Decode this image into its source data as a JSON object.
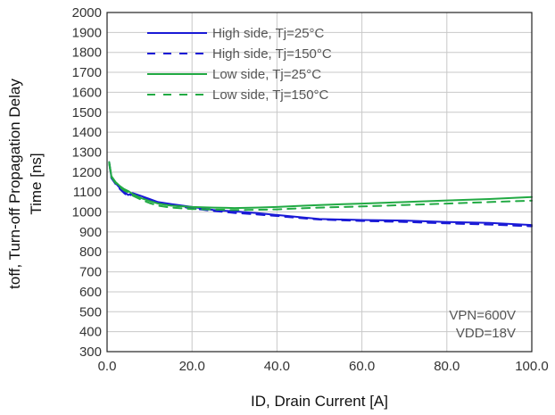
{
  "chart_data": {
    "type": "line",
    "xlabel": "ID, Drain Current [A]",
    "ylabel_lines": [
      "toff, Turn-off Propagation Delay",
      "Time [ns]"
    ],
    "xlim": [
      0,
      100
    ],
    "ylim": [
      300,
      2000
    ],
    "x_ticks": [
      0,
      20,
      40,
      60,
      80,
      100
    ],
    "x_tick_labels": [
      "0.0",
      "20.0",
      "40.0",
      "60.0",
      "80.0",
      "100.0"
    ],
    "y_ticks": [
      300,
      400,
      500,
      600,
      700,
      800,
      900,
      1000,
      1100,
      1200,
      1300,
      1400,
      1500,
      1600,
      1700,
      1800,
      1900,
      2000
    ],
    "grid": true,
    "legend_position": "top-left",
    "annotations": [
      "VPN=600V",
      "VDD=18V"
    ],
    "series": [
      {
        "name": "High side, Tj=25°C",
        "color": "#1a1ad6",
        "dash": "solid",
        "x": [
          0.5,
          1,
          2,
          3,
          4,
          5,
          6,
          8,
          10,
          12,
          15,
          20,
          25,
          30,
          35,
          40,
          45,
          50,
          60,
          70,
          80,
          90,
          100
        ],
        "y": [
          1250,
          1175,
          1145,
          1120,
          1100,
          1085,
          1095,
          1080,
          1065,
          1050,
          1040,
          1025,
          1010,
          1003,
          995,
          985,
          975,
          965,
          960,
          957,
          950,
          945,
          935
        ]
      },
      {
        "name": "High side, Tj=150°C",
        "color": "#1a1ad6",
        "dash": "dashed",
        "x": [
          0.5,
          1,
          2,
          3,
          4,
          5,
          6,
          8,
          10,
          12,
          15,
          20,
          25,
          30,
          35,
          40,
          45,
          50,
          60,
          70,
          80,
          90,
          100
        ],
        "y": [
          1245,
          1170,
          1140,
          1115,
          1095,
          1078,
          1090,
          1075,
          1060,
          1045,
          1035,
          1018,
          1005,
          995,
          988,
          980,
          970,
          962,
          955,
          950,
          943,
          937,
          928
        ]
      },
      {
        "name": "Low side, Tj=25°C",
        "color": "#22aa44",
        "dash": "solid",
        "x": [
          0.5,
          1,
          2,
          3,
          4,
          5,
          6,
          8,
          10,
          12,
          15,
          20,
          25,
          30,
          35,
          40,
          45,
          50,
          60,
          70,
          80,
          90,
          100
        ],
        "y": [
          1250,
          1180,
          1150,
          1130,
          1115,
          1105,
          1090,
          1070,
          1055,
          1042,
          1032,
          1025,
          1022,
          1020,
          1022,
          1025,
          1030,
          1035,
          1042,
          1050,
          1058,
          1065,
          1075
        ]
      },
      {
        "name": "Low side, Tj=150°C",
        "color": "#22aa44",
        "dash": "dashed",
        "x": [
          0.5,
          1,
          2,
          3,
          4,
          5,
          6,
          8,
          10,
          12,
          15,
          20,
          25,
          30,
          35,
          40,
          45,
          50,
          60,
          70,
          80,
          90,
          100
        ],
        "y": [
          1245,
          1175,
          1145,
          1125,
          1108,
          1098,
          1082,
          1062,
          1045,
          1032,
          1022,
          1015,
          1012,
          1010,
          1011,
          1013,
          1018,
          1022,
          1028,
          1035,
          1042,
          1050,
          1057
        ]
      }
    ]
  }
}
